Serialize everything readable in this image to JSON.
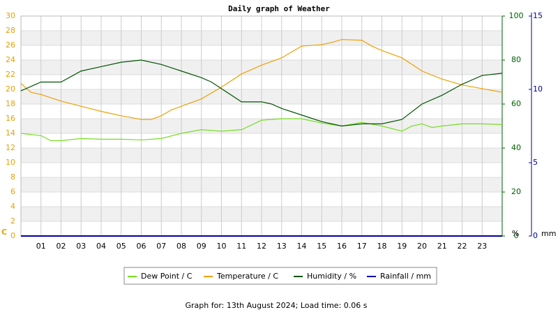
{
  "chart_data": {
    "type": "line",
    "title": "Daily graph of Weather",
    "subtitle": "Graph for: 13th August 2024; Load time: 0.06 s",
    "y_label": "C",
    "y2_label": "%",
    "y3_label": "mm",
    "xlim": [
      0,
      24
    ],
    "xticks": [
      {
        "value": 1,
        "label": "01"
      },
      {
        "value": 2,
        "label": "02"
      },
      {
        "value": 3,
        "label": "03"
      },
      {
        "value": 4,
        "label": "04"
      },
      {
        "value": 5,
        "label": "05"
      },
      {
        "value": 6,
        "label": "06"
      },
      {
        "value": 7,
        "label": "07"
      },
      {
        "value": 8,
        "label": "08"
      },
      {
        "value": 9,
        "label": "09"
      },
      10,
      11,
      12,
      13,
      14,
      15,
      16,
      17,
      18,
      19,
      20,
      21,
      22,
      23
    ],
    "ylim": [
      0,
      30
    ],
    "yticks": [
      0,
      2,
      4,
      6,
      8,
      10,
      12,
      14,
      16,
      18,
      20,
      22,
      24,
      26,
      28,
      30
    ],
    "y2lim": [
      0,
      100
    ],
    "y2ticks": [
      0,
      20,
      40,
      60,
      80,
      100
    ],
    "y3lim": [
      0,
      15
    ],
    "y3ticks": [
      0,
      5,
      10,
      15
    ],
    "grid": true,
    "series": [
      {
        "name": "Dew Point / C",
        "color": "#77dd22",
        "axis": "y",
        "x": [
          0,
          1,
          1.5,
          2,
          3,
          4,
          5,
          6,
          7,
          8,
          9,
          10,
          11,
          12,
          13,
          14,
          15,
          16,
          17,
          18,
          19,
          19.5,
          20,
          20.5,
          21,
          22,
          23,
          24
        ],
        "values": [
          14,
          13.7,
          13,
          13,
          13.3,
          13.2,
          13.2,
          13.1,
          13.3,
          14,
          14.5,
          14.3,
          14.5,
          15.8,
          16,
          16,
          15.4,
          15,
          15.5,
          15,
          14.3,
          15,
          15.3,
          14.8,
          15,
          15.3,
          15.3,
          15.2
        ]
      },
      {
        "name": "Temperature / C",
        "color": "#eea000",
        "axis": "y",
        "x": [
          0,
          0.5,
          1,
          2,
          3,
          4,
          5,
          6,
          6.5,
          7,
          7.5,
          8,
          9,
          10,
          11,
          12,
          13,
          14,
          15,
          15.5,
          16,
          17,
          17.5,
          18,
          19,
          20,
          21,
          22,
          23,
          24
        ],
        "values": [
          20.8,
          19.6,
          19.3,
          18.4,
          17.7,
          17,
          16.4,
          15.9,
          15.9,
          16.4,
          17.2,
          17.7,
          18.7,
          20.3,
          22.1,
          23.3,
          24.3,
          25.9,
          26.1,
          26.4,
          26.8,
          26.7,
          25.9,
          25.3,
          24.3,
          22.5,
          21.4,
          20.6,
          20.1,
          19.6
        ]
      },
      {
        "name": "Humidity / %",
        "color": "#005500",
        "axis": "y2",
        "x": [
          0,
          0.5,
          1,
          2,
          3,
          4,
          5,
          6,
          7,
          8,
          9,
          9.5,
          10,
          11,
          12,
          12.5,
          13,
          14,
          15,
          16,
          17,
          18,
          19,
          20,
          21,
          22,
          23,
          24
        ],
        "values": [
          66,
          68,
          70,
          70,
          75,
          77,
          79,
          80,
          78,
          75,
          72,
          70,
          67,
          61,
          61,
          60,
          58,
          55,
          52,
          50,
          51,
          51,
          53,
          60,
          64,
          69,
          73,
          74
        ]
      },
      {
        "name": "Rainfall / mm",
        "color": "#0000aa",
        "axis": "y3",
        "x": [
          0,
          24
        ],
        "values": [
          0,
          0
        ]
      }
    ]
  }
}
